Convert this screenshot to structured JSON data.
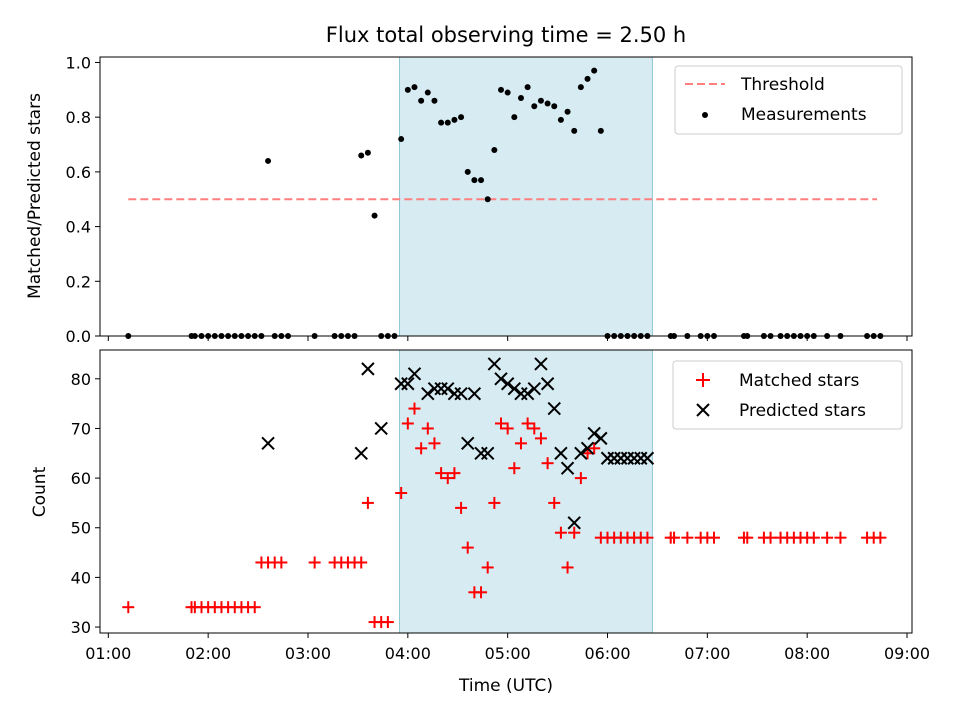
{
  "chart_data": [
    {
      "type": "scatter",
      "title": "Flux total observing time = 2.50 h",
      "ylabel": "Matched/Predicted stars",
      "xlabel": "",
      "xlim": [
        "00:55",
        "09:03"
      ],
      "ylim": [
        0,
        1.02
      ],
      "yticks": [
        "0.0",
        "0.2",
        "0.4",
        "0.6",
        "0.8",
        "1.0"
      ],
      "highlight_span": [
        "03:55",
        "06:27"
      ],
      "highlight_color": "#add8e6",
      "threshold": {
        "name": "Threshold",
        "value": 0.5,
        "x_range": [
          "01:12",
          "08:42"
        ],
        "color": "#ff7f7f",
        "style": "dashed"
      },
      "legend": {
        "position": "upper-right",
        "entries": [
          "Threshold",
          "Measurements"
        ]
      },
      "series": [
        {
          "name": "Measurements",
          "color": "#000000",
          "marker": "dot",
          "x": [
            "01:12",
            "01:50",
            "01:52",
            "01:56",
            "02:00",
            "02:04",
            "02:08",
            "02:12",
            "02:16",
            "02:20",
            "02:24",
            "02:28",
            "02:32",
            "02:36",
            "02:40",
            "02:44",
            "02:48",
            "03:04",
            "03:16",
            "03:20",
            "03:24",
            "03:28",
            "03:32",
            "03:36",
            "03:40",
            "03:44",
            "03:48",
            "03:52",
            "03:56",
            "04:00",
            "04:04",
            "04:08",
            "04:12",
            "04:16",
            "04:20",
            "04:24",
            "04:28",
            "04:32",
            "04:36",
            "04:40",
            "04:44",
            "04:48",
            "04:52",
            "04:56",
            "05:00",
            "05:04",
            "05:08",
            "05:12",
            "05:16",
            "05:20",
            "05:24",
            "05:28",
            "05:32",
            "05:36",
            "05:40",
            "05:44",
            "05:48",
            "05:52",
            "05:56",
            "06:00",
            "06:04",
            "06:08",
            "06:12",
            "06:16",
            "06:20",
            "06:24",
            "06:38",
            "06:40",
            "06:48",
            "06:56",
            "07:00",
            "07:04",
            "07:22",
            "07:24",
            "07:34",
            "07:38",
            "07:44",
            "07:48",
            "07:52",
            "07:56",
            "08:00",
            "08:04",
            "08:12",
            "08:20",
            "08:36",
            "08:40",
            "08:44"
          ],
          "y": [
            0,
            0,
            0,
            0,
            0,
            0,
            0,
            0,
            0,
            0,
            0,
            0,
            0,
            0.64,
            0,
            0,
            0,
            0,
            0,
            0,
            0,
            0,
            0.66,
            0.67,
            0.44,
            0,
            0,
            0,
            0.72,
            0.9,
            0.91,
            0.86,
            0.89,
            0.86,
            0.78,
            0.78,
            0.79,
            0.8,
            0.6,
            0.57,
            0.57,
            0.5,
            0.68,
            0.9,
            0.89,
            0.8,
            0.87,
            0.91,
            0.84,
            0.86,
            0.85,
            0.84,
            0.79,
            0.82,
            0.75,
            0.91,
            0.94,
            0.97,
            0.75,
            0,
            0,
            0,
            0,
            0,
            0,
            0,
            0,
            0,
            0,
            0,
            0,
            0,
            0,
            0,
            0,
            0,
            0,
            0,
            0,
            0,
            0,
            0,
            0,
            0,
            0,
            0,
            0
          ]
        }
      ]
    },
    {
      "type": "scatter",
      "title": "",
      "xlabel": "Time (UTC)",
      "ylabel": "Count",
      "xlim": [
        "00:55",
        "09:03"
      ],
      "ylim": [
        28.8,
        85.8
      ],
      "yticks": [
        "30",
        "40",
        "50",
        "60",
        "70",
        "80"
      ],
      "xticks": [
        "01:00",
        "02:00",
        "03:00",
        "04:00",
        "05:00",
        "06:00",
        "07:00",
        "08:00",
        "09:00"
      ],
      "highlight_span": [
        "03:55",
        "06:27"
      ],
      "highlight_color": "#add8e6",
      "legend": {
        "position": "upper-right",
        "entries": [
          "Matched stars",
          "Predicted stars"
        ]
      },
      "series": [
        {
          "name": "Matched stars",
          "color": "#ff0000",
          "marker": "plus",
          "x": [
            "01:12",
            "01:50",
            "01:52",
            "01:56",
            "02:00",
            "02:04",
            "02:08",
            "02:12",
            "02:16",
            "02:20",
            "02:24",
            "02:28",
            "02:32",
            "02:36",
            "02:40",
            "02:44",
            "03:04",
            "03:16",
            "03:20",
            "03:24",
            "03:28",
            "03:32",
            "03:36",
            "03:40",
            "03:44",
            "03:48",
            "03:56",
            "04:00",
            "04:04",
            "04:08",
            "04:12",
            "04:16",
            "04:20",
            "04:24",
            "04:28",
            "04:32",
            "04:36",
            "04:40",
            "04:44",
            "04:48",
            "04:52",
            "04:56",
            "05:00",
            "05:04",
            "05:08",
            "05:12",
            "05:16",
            "05:20",
            "05:24",
            "05:28",
            "05:32",
            "05:36",
            "05:40",
            "05:44",
            "05:48",
            "05:52",
            "05:56",
            "06:00",
            "06:04",
            "06:08",
            "06:12",
            "06:16",
            "06:20",
            "06:24",
            "06:38",
            "06:40",
            "06:48",
            "06:56",
            "07:00",
            "07:04",
            "07:22",
            "07:24",
            "07:34",
            "07:38",
            "07:44",
            "07:48",
            "07:52",
            "07:56",
            "08:00",
            "08:04",
            "08:12",
            "08:20",
            "08:36",
            "08:40",
            "08:44"
          ],
          "y": [
            34,
            34,
            34,
            34,
            34,
            34,
            34,
            34,
            34,
            34,
            34,
            34,
            43,
            43,
            43,
            43,
            43,
            43,
            43,
            43,
            43,
            43,
            55,
            31,
            31,
            31,
            57,
            71,
            74,
            66,
            70,
            67,
            61,
            60,
            61,
            54,
            46,
            37,
            37,
            42,
            55,
            71,
            70,
            62,
            67,
            71,
            70,
            68,
            63,
            55,
            49,
            42,
            49,
            60,
            65,
            66,
            48,
            48,
            48,
            48,
            48,
            48,
            48,
            48,
            48,
            48,
            48,
            48,
            48,
            48,
            48,
            48,
            48,
            48,
            48,
            48,
            48,
            48,
            48,
            48,
            48,
            48,
            48,
            48,
            48
          ]
        },
        {
          "name": "Predicted stars",
          "color": "#000000",
          "marker": "x",
          "x": [
            "02:36",
            "03:32",
            "03:36",
            "03:44",
            "03:56",
            "04:00",
            "04:04",
            "04:12",
            "04:16",
            "04:20",
            "04:24",
            "04:28",
            "04:32",
            "04:36",
            "04:40",
            "04:44",
            "04:48",
            "04:52",
            "04:56",
            "05:00",
            "05:04",
            "05:08",
            "05:12",
            "05:16",
            "05:20",
            "05:24",
            "05:28",
            "05:32",
            "05:36",
            "05:40",
            "05:44",
            "05:48",
            "05:52",
            "05:56",
            "06:00",
            "06:04",
            "06:08",
            "06:12",
            "06:16",
            "06:20",
            "06:24"
          ],
          "y": [
            67,
            65,
            82,
            70,
            79,
            79,
            81,
            77,
            78,
            78,
            78,
            77,
            77,
            67,
            77,
            65,
            65,
            83,
            80,
            79,
            78,
            77,
            77,
            78,
            83,
            79,
            74,
            65,
            62,
            51,
            65,
            66,
            69,
            68,
            64,
            64,
            64,
            64,
            64,
            64,
            64
          ]
        }
      ]
    }
  ]
}
